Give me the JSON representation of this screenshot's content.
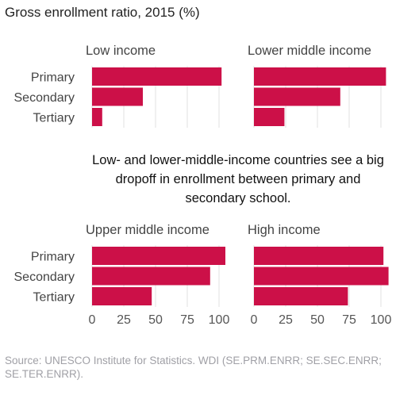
{
  "title": "Gross enrollment ratio, 2015 (%)",
  "annotation": "Low- and lower-middle-income countries see a big dropoff in enrollment between primary and secondary school.",
  "source": "Source: UNESCO Institute for Statistics. WDI (SE.PRM.ENRR; SE.SEC.ENRR; SE.TER.ENRR).",
  "colors": {
    "bar": "#cc1048",
    "grid": "#e2e2e2",
    "text": "#444444"
  },
  "chart_data": {
    "type": "bar",
    "orientation": "horizontal",
    "title": "Gross enrollment ratio, 2015 (%)",
    "categories": [
      "Primary",
      "Secondary",
      "Tertiary"
    ],
    "xlim": [
      0,
      110
    ],
    "x_ticks": [
      "0",
      "25",
      "50",
      "75",
      "100"
    ],
    "grid": true,
    "panels": [
      {
        "name": "Low income",
        "values": [
          102,
          40,
          8
        ]
      },
      {
        "name": "Lower middle income",
        "values": [
          104,
          68,
          24
        ]
      },
      {
        "name": "Upper middle income",
        "values": [
          105,
          93,
          47
        ]
      },
      {
        "name": "High income",
        "values": [
          102,
          106,
          74
        ]
      }
    ]
  }
}
